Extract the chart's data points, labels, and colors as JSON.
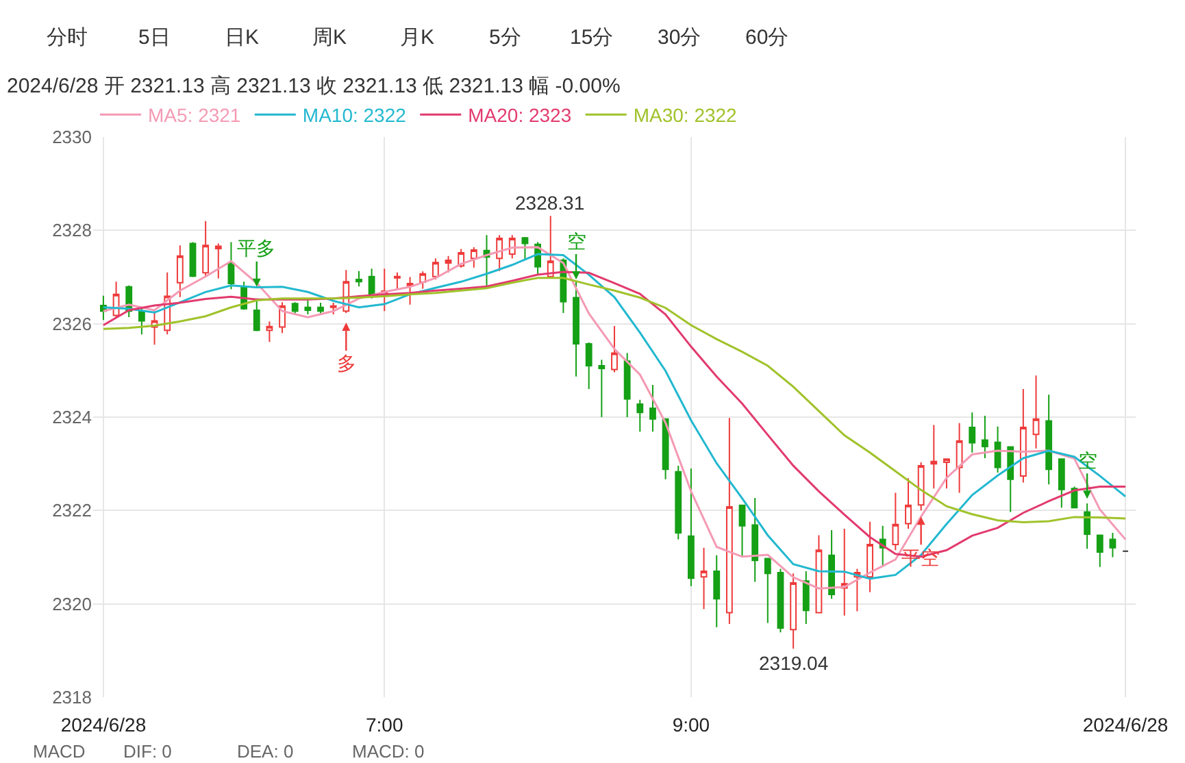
{
  "chart_data": {
    "type": "candlestick",
    "title": "2024/6/28 开 2321.13 高 2321.13 收 2321.13 低 2321.13 幅 -0.00%",
    "x": [
      "2024-06-28T05:10",
      "2024-06-28T05:15",
      "2024-06-28T05:20",
      "2024-06-28T05:25",
      "2024-06-28T05:30",
      "2024-06-28T05:35",
      "2024-06-28T05:40",
      "2024-06-28T05:45",
      "2024-06-28T05:50",
      "2024-06-28T05:55",
      "2024-06-28T06:00",
      "2024-06-28T06:05",
      "2024-06-28T06:10",
      "2024-06-28T06:15",
      "2024-06-28T06:20",
      "2024-06-28T06:25",
      "2024-06-28T06:30",
      "2024-06-28T06:35",
      "2024-06-28T06:40",
      "2024-06-28T06:45",
      "2024-06-28T06:50",
      "2024-06-28T06:55",
      "2024-06-28T07:00",
      "2024-06-28T07:05",
      "2024-06-28T07:10",
      "2024-06-28T07:15",
      "2024-06-28T07:20",
      "2024-06-28T07:25",
      "2024-06-28T07:30",
      "2024-06-28T07:35",
      "2024-06-28T07:40",
      "2024-06-28T07:45",
      "2024-06-28T07:50",
      "2024-06-28T07:55",
      "2024-06-28T08:00",
      "2024-06-28T08:05",
      "2024-06-28T08:10",
      "2024-06-28T08:15",
      "2024-06-28T08:20",
      "2024-06-28T08:25",
      "2024-06-28T08:30",
      "2024-06-28T08:35",
      "2024-06-28T08:40",
      "2024-06-28T08:45",
      "2024-06-28T08:50",
      "2024-06-28T08:55",
      "2024-06-28T09:00",
      "2024-06-28T09:05",
      "2024-06-28T09:10",
      "2024-06-28T09:15",
      "2024-06-28T09:20",
      "2024-06-28T09:25",
      "2024-06-28T09:30",
      "2024-06-28T09:35",
      "2024-06-28T09:40",
      "2024-06-28T09:45",
      "2024-06-28T09:50",
      "2024-06-28T09:55",
      "2024-06-28T10:00",
      "2024-06-28T10:05",
      "2024-06-28T10:10",
      "2024-06-28T10:15",
      "2024-06-28T10:20",
      "2024-06-28T10:25",
      "2024-06-28T10:30",
      "2024-06-28T10:35",
      "2024-06-28T10:40",
      "2024-06-28T10:45",
      "2024-06-28T10:50",
      "2024-06-28T10:55",
      "2024-06-28T11:00",
      "2024-06-28T11:05",
      "2024-06-28T11:10",
      "2024-06-28T11:15",
      "2024-06-28T11:20",
      "2024-06-28T11:25",
      "2024-06-28T11:30",
      "2024-06-28T11:35",
      "2024-06-28T11:40",
      "2024-06-28T11:45",
      "2024-06-28T11:50"
    ],
    "ohlc": [
      [
        2326.39,
        2326.6,
        2326.08,
        2326.27
      ],
      [
        2326.18,
        2326.9,
        2326.14,
        2326.63
      ],
      [
        2326.79,
        2326.82,
        2326.14,
        2326.27
      ],
      [
        2326.27,
        2326.36,
        2325.77,
        2326.06
      ],
      [
        2325.93,
        2326.27,
        2325.55,
        2326.06
      ],
      [
        2325.86,
        2327.1,
        2325.77,
        2326.59
      ],
      [
        2326.88,
        2327.68,
        2326.57,
        2327.45
      ],
      [
        2327.72,
        2327.75,
        2327.0,
        2327.02
      ],
      [
        2327.09,
        2328.2,
        2327.02,
        2327.68
      ],
      [
        2327.61,
        2327.72,
        2326.97,
        2327.66
      ],
      [
        2327.3,
        2327.75,
        2326.74,
        2326.86
      ],
      [
        2326.79,
        2326.9,
        2326.3,
        2326.32
      ],
      [
        2326.29,
        2326.54,
        2325.84,
        2325.86
      ],
      [
        2325.86,
        2326.05,
        2325.61,
        2325.94
      ],
      [
        2325.93,
        2326.46,
        2325.8,
        2326.38
      ],
      [
        2326.43,
        2326.46,
        2326.2,
        2326.27
      ],
      [
        2326.35,
        2326.5,
        2326.2,
        2326.29
      ],
      [
        2326.35,
        2326.45,
        2326.22,
        2326.27
      ],
      [
        2326.35,
        2326.45,
        2326.2,
        2326.38
      ],
      [
        2326.27,
        2327.15,
        2326.23,
        2326.9
      ],
      [
        2326.95,
        2327.13,
        2326.8,
        2326.9
      ],
      [
        2327.01,
        2327.18,
        2326.54,
        2326.62
      ],
      [
        2326.62,
        2327.18,
        2326.27,
        2326.7
      ],
      [
        2326.98,
        2327.1,
        2326.72,
        2327.01
      ],
      [
        2326.82,
        2327.0,
        2326.41,
        2326.86
      ],
      [
        2326.89,
        2327.12,
        2326.75,
        2327.07
      ],
      [
        2327.01,
        2327.4,
        2326.95,
        2327.31
      ],
      [
        2327.3,
        2327.45,
        2327.1,
        2327.36
      ],
      [
        2327.24,
        2327.6,
        2327.2,
        2327.52
      ],
      [
        2327.4,
        2327.64,
        2327.2,
        2327.58
      ],
      [
        2327.57,
        2327.9,
        2326.77,
        2327.43
      ],
      [
        2327.4,
        2327.9,
        2327.13,
        2327.83
      ],
      [
        2327.49,
        2327.9,
        2327.4,
        2327.83
      ],
      [
        2327.84,
        2327.86,
        2327.36,
        2327.72
      ],
      [
        2327.7,
        2327.75,
        2327.04,
        2327.22
      ],
      [
        2327.01,
        2328.31,
        2327.0,
        2327.34
      ],
      [
        2327.36,
        2327.4,
        2326.23,
        2326.47
      ],
      [
        2326.56,
        2326.9,
        2324.87,
        2325.57
      ],
      [
        2325.57,
        2325.6,
        2324.6,
        2325.1
      ],
      [
        2325.1,
        2325.23,
        2324.0,
        2325.04
      ],
      [
        2325.02,
        2325.95,
        2324.96,
        2325.37
      ],
      [
        2325.2,
        2325.37,
        2324.0,
        2324.39
      ],
      [
        2324.28,
        2324.37,
        2323.69,
        2324.1
      ],
      [
        2324.19,
        2324.69,
        2323.69,
        2323.96
      ],
      [
        2323.96,
        2323.96,
        2322.67,
        2322.88
      ],
      [
        2322.83,
        2322.96,
        2321.38,
        2321.52
      ],
      [
        2321.45,
        2322.9,
        2320.38,
        2320.55
      ],
      [
        2320.58,
        2321.2,
        2319.89,
        2320.7
      ],
      [
        2320.7,
        2321.04,
        2319.5,
        2320.11
      ],
      [
        2319.81,
        2323.98,
        2319.57,
        2322.08
      ],
      [
        2322.11,
        2322.11,
        2321.02,
        2321.67
      ],
      [
        2321.69,
        2322.27,
        2320.47,
        2320.93
      ],
      [
        2320.97,
        2320.97,
        2319.59,
        2320.65
      ],
      [
        2320.67,
        2320.75,
        2319.39,
        2319.48
      ],
      [
        2319.45,
        2320.65,
        2319.04,
        2320.45
      ],
      [
        2320.49,
        2320.7,
        2319.57,
        2319.86
      ],
      [
        2319.81,
        2321.47,
        2319.81,
        2321.15
      ],
      [
        2321.04,
        2321.58,
        2320.11,
        2320.2
      ],
      [
        2320.34,
        2321.61,
        2319.75,
        2320.43
      ],
      [
        2320.58,
        2320.75,
        2319.84,
        2320.67
      ],
      [
        2320.58,
        2321.76,
        2320.25,
        2321.27
      ],
      [
        2321.38,
        2321.67,
        2320.79,
        2321.2
      ],
      [
        2321.27,
        2322.38,
        2321.15,
        2321.7
      ],
      [
        2321.72,
        2322.69,
        2321.61,
        2322.11
      ],
      [
        2322.12,
        2323.03,
        2322.0,
        2322.96
      ],
      [
        2323.0,
        2323.83,
        2322.47,
        2323.05
      ],
      [
        2323.03,
        2323.1,
        2322.47,
        2323.1
      ],
      [
        2322.92,
        2323.87,
        2322.38,
        2323.49
      ],
      [
        2323.78,
        2324.1,
        2323.24,
        2323.45
      ],
      [
        2323.51,
        2324.03,
        2323.12,
        2323.37
      ],
      [
        2323.46,
        2323.8,
        2322.81,
        2322.92
      ],
      [
        2323.36,
        2323.36,
        2321.97,
        2322.67
      ],
      [
        2322.74,
        2324.6,
        2322.6,
        2323.78
      ],
      [
        2323.63,
        2324.89,
        2323.33,
        2323.96
      ],
      [
        2323.92,
        2324.48,
        2322.56,
        2322.88
      ],
      [
        2323.1,
        2323.1,
        2322.06,
        2322.45
      ],
      [
        2322.47,
        2322.51,
        2322.06,
        2322.06
      ],
      [
        2321.97,
        2322.15,
        2321.18,
        2321.49
      ],
      [
        2321.47,
        2321.47,
        2320.79,
        2321.11
      ],
      [
        2321.38,
        2321.52,
        2321.0,
        2321.2
      ],
      [
        2321.13,
        2321.13,
        2321.13,
        2321.13
      ]
    ],
    "colors": [
      "#15a015",
      "#ee3a3a",
      "#15a015",
      "#15a015",
      "#ee3a3a",
      "#ee3a3a",
      "#ee3a3a",
      "#15a015",
      "#ee3a3a",
      "#ee3a3a",
      "#15a015",
      "#15a015",
      "#15a015",
      "#ee3a3a",
      "#ee3a3a",
      "#15a015",
      "#15a015",
      "#15a015",
      "#ee3a3a",
      "#ee3a3a",
      "#15a015",
      "#15a015",
      "#ee3a3a",
      "#ee3a3a",
      "#ee3a3a",
      "#ee3a3a",
      "#ee3a3a",
      "#ee3a3a",
      "#ee3a3a",
      "#ee3a3a",
      "#15a015",
      "#ee3a3a",
      "#ee3a3a",
      "#15a015",
      "#15a015",
      "#ee3a3a",
      "#15a015",
      "#15a015",
      "#15a015",
      "#15a015",
      "#ee3a3a",
      "#15a015",
      "#15a015",
      "#15a015",
      "#15a015",
      "#15a015",
      "#15a015",
      "#ee3a3a",
      "#15a015",
      "#ee3a3a",
      "#15a015",
      "#15a015",
      "#15a015",
      "#15a015",
      "#ee3a3a",
      "#15a015",
      "#ee3a3a",
      "#15a015",
      "#ee3a3a",
      "#ee3a3a",
      "#ee3a3a",
      "#15a015",
      "#ee3a3a",
      "#ee3a3a",
      "#ee3a3a",
      "#ee3a3a",
      "#ee3a3a",
      "#ee3a3a",
      "#15a015",
      "#15a015",
      "#15a015",
      "#15a015",
      "#ee3a3a",
      "#ee3a3a",
      "#15a015",
      "#15a015",
      "#15a015",
      "#15a015",
      "#15a015",
      "#15a015",
      "#333333"
    ],
    "series": [
      {
        "type": "line",
        "name": "MA5: 2321",
        "color": "#f49ab4",
        "x": [
          "2024-06-28T05:10",
          "2024-06-28T05:20",
          "2024-06-28T05:30",
          "2024-06-28T05:40",
          "2024-06-28T05:50",
          "2024-06-28T06:00",
          "2024-06-28T06:10",
          "2024-06-28T06:20",
          "2024-06-28T06:30",
          "2024-06-28T06:40",
          "2024-06-28T06:50",
          "2024-06-28T07:00",
          "2024-06-28T07:10",
          "2024-06-28T07:20",
          "2024-06-28T07:30",
          "2024-06-28T07:40",
          "2024-06-28T07:50",
          "2024-06-28T08:00",
          "2024-06-28T08:10",
          "2024-06-28T08:20",
          "2024-06-28T08:30",
          "2024-06-28T08:40",
          "2024-06-28T08:50",
          "2024-06-28T09:00",
          "2024-06-28T09:10",
          "2024-06-28T09:20",
          "2024-06-28T09:30",
          "2024-06-28T09:40",
          "2024-06-28T09:50",
          "2024-06-28T10:00",
          "2024-06-28T10:10",
          "2024-06-28T10:20",
          "2024-06-28T10:30",
          "2024-06-28T10:40",
          "2024-06-28T10:50",
          "2024-06-28T11:00",
          "2024-06-28T11:10",
          "2024-06-28T11:20",
          "2024-06-28T11:30",
          "2024-06-28T11:40",
          "2024-06-28T11:50"
        ],
        "values": [
          2326.27,
          2326.41,
          2326.29,
          2326.71,
          2327.01,
          2327.34,
          2326.87,
          2326.27,
          2326.14,
          2326.27,
          2326.54,
          2326.68,
          2326.79,
          2326.98,
          2327.28,
          2327.47,
          2327.63,
          2327.64,
          2327.3,
          2326.22,
          2325.46,
          2324.91,
          2323.88,
          2322.41,
          2321.22,
          2321.01,
          2321.05,
          2320.57,
          2320.33,
          2320.36,
          2320.67,
          2320.95,
          2321.87,
          2322.7,
          2323.2,
          2323.28,
          2323.26,
          2323.28,
          2323.11,
          2322.02,
          2321.38
        ]
      },
      {
        "type": "line",
        "name": "MA10: 2322",
        "color": "#22b8d0",
        "x": [
          "2024-06-28T05:10",
          "2024-06-28T05:20",
          "2024-06-28T05:30",
          "2024-06-28T05:40",
          "2024-06-28T05:50",
          "2024-06-28T06:00",
          "2024-06-28T06:10",
          "2024-06-28T06:20",
          "2024-06-28T06:30",
          "2024-06-28T06:40",
          "2024-06-28T06:50",
          "2024-06-28T07:00",
          "2024-06-28T07:10",
          "2024-06-28T07:20",
          "2024-06-28T07:30",
          "2024-06-28T07:40",
          "2024-06-28T07:50",
          "2024-06-28T08:00",
          "2024-06-28T08:10",
          "2024-06-28T08:20",
          "2024-06-28T08:30",
          "2024-06-28T08:40",
          "2024-06-28T08:50",
          "2024-06-28T09:00",
          "2024-06-28T09:10",
          "2024-06-28T09:20",
          "2024-06-28T09:30",
          "2024-06-28T09:40",
          "2024-06-28T09:50",
          "2024-06-28T10:00",
          "2024-06-28T10:10",
          "2024-06-28T10:20",
          "2024-06-28T10:30",
          "2024-06-28T10:40",
          "2024-06-28T10:50",
          "2024-06-28T11:00",
          "2024-06-28T11:10",
          "2024-06-28T11:20",
          "2024-06-28T11:30",
          "2024-06-28T11:40",
          "2024-06-28T11:50"
        ],
        "values": [
          2326.35,
          2326.32,
          2326.24,
          2326.46,
          2326.68,
          2326.82,
          2326.78,
          2326.79,
          2326.68,
          2326.49,
          2326.35,
          2326.42,
          2326.63,
          2326.77,
          2326.9,
          2327.07,
          2327.26,
          2327.49,
          2327.47,
          2327.05,
          2326.57,
          2325.81,
          2324.99,
          2323.93,
          2323.01,
          2322.26,
          2321.47,
          2320.85,
          2320.7,
          2320.69,
          2320.54,
          2320.62,
          2321.05,
          2321.71,
          2322.33,
          2322.75,
          2323.12,
          2323.28,
          2323.15,
          2322.74,
          2322.3
        ]
      },
      {
        "type": "line",
        "name": "MA20: 2323",
        "color": "#e23a6e",
        "x": [
          "2024-06-28T05:10",
          "2024-06-28T05:20",
          "2024-06-28T05:30",
          "2024-06-28T05:40",
          "2024-06-28T05:50",
          "2024-06-28T06:00",
          "2024-06-28T06:10",
          "2024-06-28T06:20",
          "2024-06-28T06:30",
          "2024-06-28T06:40",
          "2024-06-28T06:50",
          "2024-06-28T07:00",
          "2024-06-28T07:10",
          "2024-06-28T07:20",
          "2024-06-28T07:30",
          "2024-06-28T07:40",
          "2024-06-28T07:50",
          "2024-06-28T08:00",
          "2024-06-28T08:10",
          "2024-06-28T08:20",
          "2024-06-28T08:30",
          "2024-06-28T08:40",
          "2024-06-28T08:50",
          "2024-06-28T09:00",
          "2024-06-28T09:10",
          "2024-06-28T09:20",
          "2024-06-28T09:30",
          "2024-06-28T09:40",
          "2024-06-28T09:50",
          "2024-06-28T10:00",
          "2024-06-28T10:10",
          "2024-06-28T10:20",
          "2024-06-28T10:30",
          "2024-06-28T10:40",
          "2024-06-28T10:50",
          "2024-06-28T11:00",
          "2024-06-28T11:10",
          "2024-06-28T11:20",
          "2024-06-28T11:30",
          "2024-06-28T11:40",
          "2024-06-28T11:50"
        ],
        "values": [
          2325.97,
          2326.29,
          2326.39,
          2326.45,
          2326.53,
          2326.58,
          2326.52,
          2326.52,
          2326.52,
          2326.54,
          2326.59,
          2326.63,
          2326.66,
          2326.71,
          2326.75,
          2326.8,
          2326.92,
          2327.05,
          2327.11,
          2327.09,
          2326.87,
          2326.64,
          2326.2,
          2325.51,
          2324.87,
          2324.29,
          2323.62,
          2322.96,
          2322.41,
          2321.91,
          2321.43,
          2321.07,
          2321.01,
          2321.15,
          2321.46,
          2321.63,
          2321.95,
          2322.2,
          2322.43,
          2322.51,
          2322.51
        ]
      },
      {
        "type": "line",
        "name": "MA30: 2322",
        "color": "#a0c22a",
        "x": [
          "2024-06-28T05:10",
          "2024-06-28T05:20",
          "2024-06-28T05:30",
          "2024-06-28T05:40",
          "2024-06-28T05:50",
          "2024-06-28T06:00",
          "2024-06-28T06:10",
          "2024-06-28T06:20",
          "2024-06-28T06:30",
          "2024-06-28T06:40",
          "2024-06-28T06:50",
          "2024-06-28T07:00",
          "2024-06-28T07:10",
          "2024-06-28T07:20",
          "2024-06-28T07:30",
          "2024-06-28T07:40",
          "2024-06-28T07:50",
          "2024-06-28T08:00",
          "2024-06-28T08:10",
          "2024-06-28T08:20",
          "2024-06-28T08:30",
          "2024-06-28T08:40",
          "2024-06-28T08:50",
          "2024-06-28T09:00",
          "2024-06-28T09:10",
          "2024-06-28T09:20",
          "2024-06-28T09:30",
          "2024-06-28T09:40",
          "2024-06-28T09:50",
          "2024-06-28T10:00",
          "2024-06-28T10:10",
          "2024-06-28T10:20",
          "2024-06-28T10:30",
          "2024-06-28T10:40",
          "2024-06-28T10:50",
          "2024-06-28T11:00",
          "2024-06-28T11:10",
          "2024-06-28T11:20",
          "2024-06-28T11:30",
          "2024-06-28T11:40",
          "2024-06-28T11:50"
        ],
        "values": [
          2325.89,
          2325.91,
          2325.96,
          2326.05,
          2326.16,
          2326.35,
          2326.5,
          2326.54,
          2326.54,
          2326.54,
          2326.56,
          2326.59,
          2326.63,
          2326.66,
          2326.71,
          2326.76,
          2326.88,
          2326.98,
          2326.98,
          2326.84,
          2326.71,
          2326.56,
          2326.34,
          2325.97,
          2325.67,
          2325.4,
          2325.1,
          2324.65,
          2324.13,
          2323.61,
          2323.24,
          2322.84,
          2322.44,
          2322.09,
          2321.92,
          2321.79,
          2321.75,
          2321.77,
          2321.86,
          2321.85,
          2321.83
        ]
      }
    ],
    "annotations": [
      "分时",
      "5日",
      "日K",
      "周K",
      "月K",
      "5分",
      "15分",
      "30分",
      "60分",
      {
        "text": "2328.31",
        "x": "2024-06-28T08:05",
        "y": 2328.31
      },
      {
        "text": "2319.04",
        "x": "2024-06-28T09:40",
        "y": 2319.04
      },
      {
        "text": "平多",
        "x": "2024-06-28T06:10",
        "y": 2326.79
      },
      {
        "text": "多",
        "x": "2024-06-28T06:45",
        "y": 2326.23
      },
      {
        "text": "空",
        "x": "2024-06-28T08:15",
        "y": 2326.95
      },
      {
        "text": "平空",
        "x": "2024-06-28T10:30",
        "y": 2321.87
      },
      {
        "text": "空",
        "x": "2024-06-28T11:35",
        "y": 2322.25
      },
      "MACD",
      "DIF: 0",
      "DEA: 0",
      "MACD: 0"
    ],
    "xlim": [
      "2024-06-28T05:06",
      "2024-06-28T11:54"
    ],
    "xticks": [
      {
        "value": "2024-06-28T05:10",
        "label": "2024/6/28"
      },
      {
        "value": "2024-06-28T07:00",
        "label": "7:00"
      },
      {
        "value": "2024-06-28T09:00",
        "label": "9:00"
      },
      {
        "value": "2024-06-28T11:50",
        "label": "2024/6/28"
      }
    ],
    "ylim": [
      2318,
      2330
    ],
    "yticks": [
      2318,
      2320,
      2322,
      2324,
      2326,
      2328,
      2330
    ],
    "grid": true,
    "legend": "top left"
  }
}
